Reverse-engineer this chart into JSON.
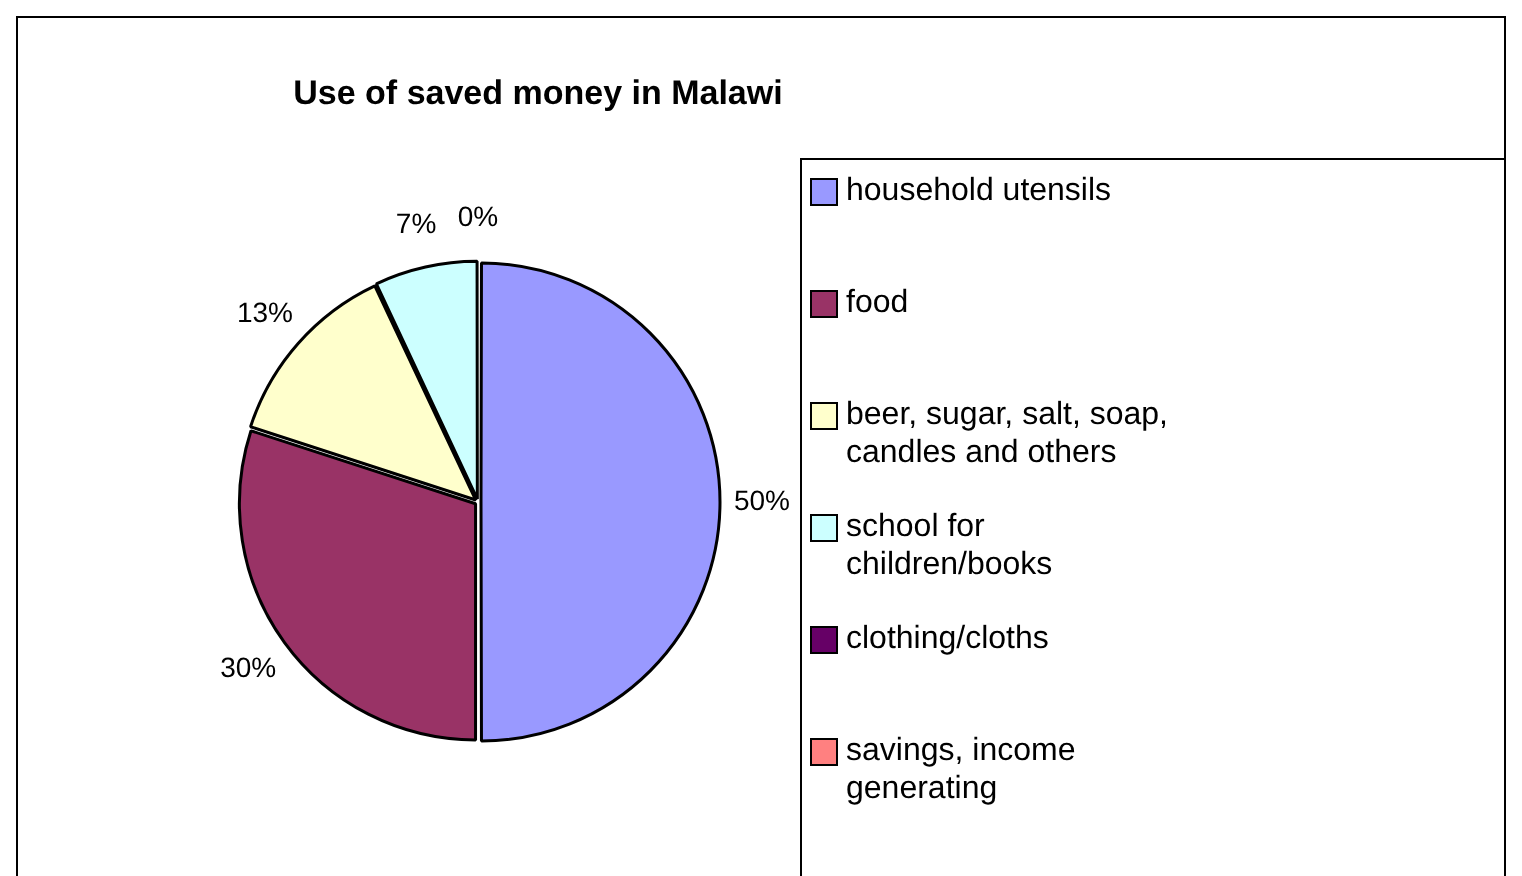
{
  "chart_data": {
    "type": "pie",
    "title": "Use of saved money in Malawi",
    "categories": [
      "household utensils",
      "food",
      "beer, sugar, salt, soap, candles and others",
      "school for children/books",
      "clothing/cloths",
      "savings, income generating"
    ],
    "values": [
      50,
      30,
      13,
      7,
      0,
      0
    ],
    "colors": [
      "#9999ff",
      "#993366",
      "#ffffcc",
      "#ccffff",
      "#660066",
      "#ff8080"
    ],
    "value_labels": [
      "50%",
      "30%",
      "13%",
      "7%",
      "0%",
      null
    ],
    "legend": "right"
  }
}
